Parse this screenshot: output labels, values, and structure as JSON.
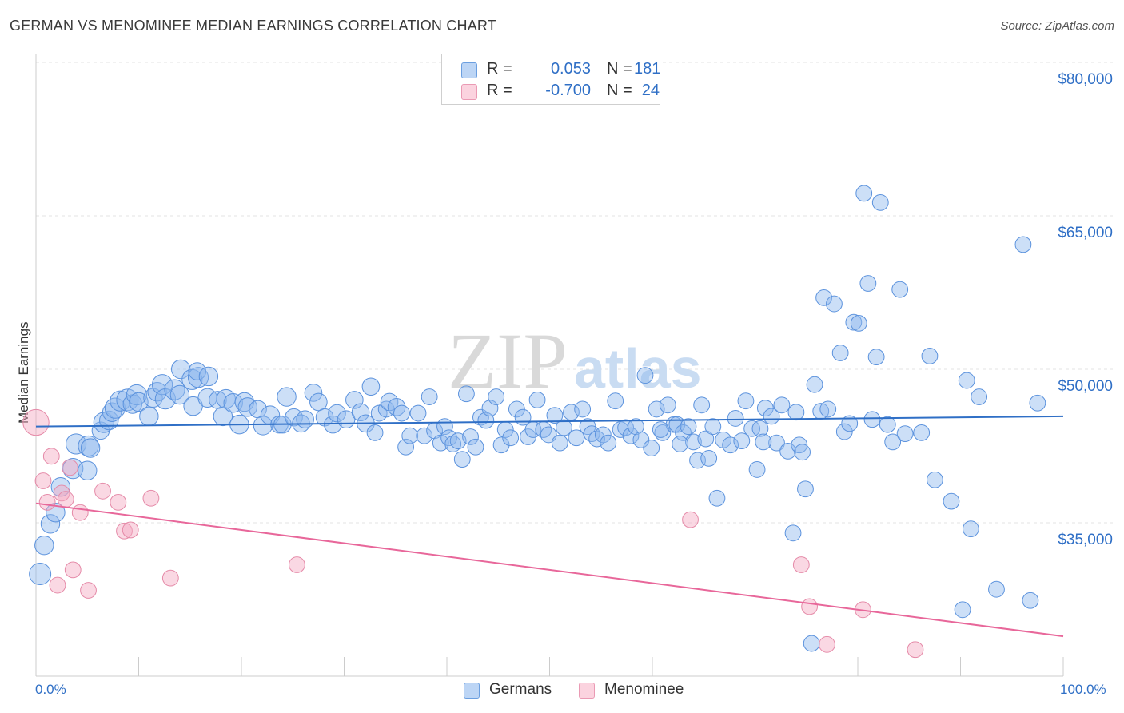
{
  "chart_data": {
    "type": "scatter",
    "title": "GERMAN VS MENOMINEE MEDIAN EARNINGS CORRELATION CHART",
    "source": "Source: ZipAtlas.com",
    "xlabel": "",
    "ylabel": "Median Earnings",
    "xlim": [
      0,
      100
    ],
    "ylim": [
      20000,
      84000
    ],
    "x_tick_labels": [
      "0.0%",
      "100.0%"
    ],
    "y_ticks": [
      {
        "value": 80000,
        "label": "$80,000"
      },
      {
        "value": 65000,
        "label": "$65,000"
      },
      {
        "value": 50000,
        "label": "$50,000"
      },
      {
        "value": 35000,
        "label": "$35,000"
      }
    ],
    "grid": true,
    "legend": {
      "placement": "top-center",
      "entries": [
        {
          "name": "Germans",
          "r_label": "R =",
          "r": "0.053",
          "n_label": "N =",
          "n": "181",
          "color": "#8fb8ee"
        },
        {
          "name": "Menominee",
          "r_label": "R =",
          "r": "-0.700",
          "n_label": "N =",
          "n": "24",
          "color": "#f4a8c0"
        }
      ]
    },
    "watermark": "ZIPatlas",
    "series": [
      {
        "name": "Germans",
        "color": "#8fb8ee",
        "stroke": "#5b92dd",
        "trend": {
          "x": [
            0,
            100
          ],
          "y": [
            44400,
            45400
          ],
          "color": "#2f6fc6"
        },
        "points": [
          [
            0.4,
            30000,
            1.5
          ],
          [
            0.8,
            32800,
            1.3
          ],
          [
            1.4,
            34900,
            1.3
          ],
          [
            1.9,
            36000,
            1.3
          ],
          [
            2.4,
            38500,
            1.3
          ],
          [
            3.6,
            40300,
            1.4
          ],
          [
            3.9,
            42700,
            1.4
          ],
          [
            5.0,
            40100,
            1.3
          ],
          [
            5.1,
            42500,
            1.4
          ],
          [
            5.3,
            42300,
            1.3
          ],
          [
            6.3,
            44000,
            1.2
          ],
          [
            6.6,
            44800,
            1.4
          ],
          [
            7.1,
            45000,
            1.3
          ],
          [
            7.4,
            45800,
            1.3
          ],
          [
            7.7,
            46200,
            1.4
          ],
          [
            8.2,
            46900,
            1.4
          ],
          [
            8.9,
            47000,
            1.5
          ],
          [
            9.4,
            46600,
            1.3
          ],
          [
            9.8,
            47500,
            1.4
          ],
          [
            10.0,
            46800,
            1.3
          ],
          [
            11.0,
            45400,
            1.3
          ],
          [
            11.4,
            47200,
            1.3
          ],
          [
            11.8,
            47800,
            1.3
          ],
          [
            12.3,
            48500,
            1.4
          ],
          [
            12.6,
            47100,
            1.4
          ],
          [
            13.5,
            48000,
            1.4
          ],
          [
            14.0,
            47500,
            1.3
          ],
          [
            14.1,
            50000,
            1.3
          ],
          [
            15.2,
            49000,
            1.4
          ],
          [
            15.8,
            49200,
            1.4
          ],
          [
            15.7,
            49800,
            1.2
          ],
          [
            16.8,
            49300,
            1.3
          ],
          [
            15.3,
            46400,
            1.3
          ],
          [
            16.7,
            47200,
            1.3
          ],
          [
            17.7,
            47000,
            1.2
          ],
          [
            18.2,
            45400,
            1.3
          ],
          [
            18.5,
            47100,
            1.3
          ],
          [
            19.2,
            46700,
            1.3
          ],
          [
            19.8,
            44600,
            1.3
          ],
          [
            20.3,
            46800,
            1.3
          ],
          [
            20.6,
            46300,
            1.3
          ],
          [
            21.6,
            46100,
            1.2
          ],
          [
            22.1,
            44500,
            1.3
          ],
          [
            22.8,
            45500,
            1.3
          ],
          [
            23.7,
            44600,
            1.2
          ],
          [
            24.0,
            44600,
            1.2
          ],
          [
            24.4,
            47300,
            1.3
          ],
          [
            25.1,
            45300,
            1.2
          ],
          [
            25.8,
            44700,
            1.2
          ],
          [
            26.2,
            45100,
            1.2
          ],
          [
            27.0,
            47700,
            1.2
          ],
          [
            27.5,
            46800,
            1.2
          ],
          [
            28.1,
            45300,
            1.2
          ],
          [
            28.9,
            44600,
            1.2
          ],
          [
            29.3,
            45700,
            1.2
          ],
          [
            30.2,
            45100,
            1.2
          ],
          [
            31.0,
            47000,
            1.2
          ],
          [
            31.6,
            45800,
            1.2
          ],
          [
            32.1,
            44700,
            1.2
          ],
          [
            32.6,
            48300,
            1.2
          ],
          [
            33.0,
            43800,
            1.1
          ],
          [
            33.4,
            45700,
            1.1
          ],
          [
            34.1,
            46100,
            1.1
          ],
          [
            34.4,
            46800,
            1.2
          ],
          [
            35.1,
            46300,
            1.2
          ],
          [
            35.6,
            45700,
            1.1
          ],
          [
            36.0,
            42400,
            1.1
          ],
          [
            36.4,
            43500,
            1.1
          ],
          [
            37.2,
            45700,
            1.1
          ],
          [
            37.8,
            43500,
            1.1
          ],
          [
            38.3,
            47300,
            1.1
          ],
          [
            38.8,
            44000,
            1.1
          ],
          [
            39.4,
            42800,
            1.1
          ],
          [
            39.8,
            44400,
            1.1
          ],
          [
            40.2,
            43300,
            1.1
          ],
          [
            40.6,
            42700,
            1.1
          ],
          [
            41.1,
            43000,
            1.1
          ],
          [
            41.5,
            41200,
            1.1
          ],
          [
            41.9,
            47600,
            1.1
          ],
          [
            42.3,
            43400,
            1.1
          ],
          [
            42.8,
            42400,
            1.1
          ],
          [
            43.3,
            45300,
            1.1
          ],
          [
            43.8,
            45000,
            1.1
          ],
          [
            44.2,
            46200,
            1.1
          ],
          [
            44.8,
            47300,
            1.1
          ],
          [
            45.3,
            42600,
            1.1
          ],
          [
            45.7,
            44100,
            1.1
          ],
          [
            46.2,
            43300,
            1.1
          ],
          [
            46.8,
            46100,
            1.1
          ],
          [
            47.4,
            45300,
            1.1
          ],
          [
            47.9,
            43400,
            1.1
          ],
          [
            48.4,
            44100,
            1.1
          ],
          [
            48.8,
            47000,
            1.1
          ],
          [
            49.4,
            44100,
            1.1
          ],
          [
            49.9,
            43600,
            1.1
          ],
          [
            50.5,
            45500,
            1.1
          ],
          [
            51.0,
            42800,
            1.1
          ],
          [
            51.4,
            44300,
            1.1
          ],
          [
            52.1,
            45800,
            1.1
          ],
          [
            52.6,
            43300,
            1.1
          ],
          [
            53.2,
            46100,
            1.1
          ],
          [
            53.7,
            44400,
            1.1
          ],
          [
            54.1,
            43700,
            1.1
          ],
          [
            54.6,
            43200,
            1.1
          ],
          [
            55.2,
            43600,
            1.1
          ],
          [
            55.7,
            42800,
            1.1
          ],
          [
            56.4,
            46900,
            1.1
          ],
          [
            56.9,
            44100,
            1.1
          ],
          [
            57.4,
            44300,
            1.1
          ],
          [
            57.9,
            43500,
            1.1
          ],
          [
            58.4,
            44400,
            1.1
          ],
          [
            58.9,
            43100,
            1.1
          ],
          [
            59.3,
            49400,
            1.1
          ],
          [
            59.9,
            42300,
            1.1
          ],
          [
            60.4,
            46100,
            1.1
          ],
          [
            61.0,
            43800,
            1.1
          ],
          [
            61.5,
            46500,
            1.1
          ],
          [
            62.1,
            44600,
            1.1
          ],
          [
            62.4,
            44600,
            1.1
          ],
          [
            63.0,
            43800,
            1.1
          ],
          [
            63.5,
            44400,
            1.1
          ],
          [
            64.0,
            42900,
            1.1
          ],
          [
            64.4,
            41100,
            1.1
          ],
          [
            64.8,
            46500,
            1.1
          ],
          [
            65.2,
            43200,
            1.1
          ],
          [
            65.5,
            41300,
            1.1
          ],
          [
            65.9,
            44400,
            1.1
          ],
          [
            66.3,
            37400,
            1.1
          ],
          [
            66.9,
            43100,
            1.1
          ],
          [
            67.6,
            42600,
            1.1
          ],
          [
            68.1,
            45200,
            1.1
          ],
          [
            68.7,
            43000,
            1.1
          ],
          [
            69.1,
            46900,
            1.1
          ],
          [
            69.7,
            44200,
            1.1
          ],
          [
            70.2,
            40200,
            1.1
          ],
          [
            70.5,
            44200,
            1.1
          ],
          [
            71.0,
            46200,
            1.1
          ],
          [
            71.6,
            45400,
            1.1
          ],
          [
            72.1,
            42800,
            1.1
          ],
          [
            72.6,
            46500,
            1.1
          ],
          [
            73.2,
            42000,
            1.1
          ],
          [
            73.7,
            34000,
            1.1
          ],
          [
            74.3,
            42600,
            1.1
          ],
          [
            74.6,
            41900,
            1.1
          ],
          [
            74.9,
            38300,
            1.1
          ],
          [
            75.5,
            23200,
            1.1
          ],
          [
            75.8,
            48500,
            1.1
          ],
          [
            76.4,
            45900,
            1.1
          ],
          [
            76.7,
            57000,
            1.1
          ],
          [
            77.1,
            46100,
            1.1
          ],
          [
            77.7,
            56400,
            1.1
          ],
          [
            78.3,
            51600,
            1.1
          ],
          [
            78.7,
            43900,
            1.1
          ],
          [
            79.2,
            44700,
            1.1
          ],
          [
            79.6,
            54600,
            1.1
          ],
          [
            80.1,
            54500,
            1.1
          ],
          [
            80.6,
            67200,
            1.1
          ],
          [
            81.0,
            58400,
            1.1
          ],
          [
            81.4,
            45100,
            1.1
          ],
          [
            81.8,
            51200,
            1.1
          ],
          [
            82.2,
            66300,
            1.1
          ],
          [
            82.9,
            44600,
            1.1
          ],
          [
            83.4,
            42900,
            1.1
          ],
          [
            84.1,
            57800,
            1.1
          ],
          [
            84.6,
            43700,
            1.1
          ],
          [
            87.0,
            51300,
            1.1
          ],
          [
            87.5,
            39200,
            1.1
          ],
          [
            89.1,
            37100,
            1.1
          ],
          [
            90.2,
            26500,
            1.1
          ],
          [
            90.6,
            48900,
            1.1
          ],
          [
            91.0,
            34400,
            1.1
          ],
          [
            91.8,
            47300,
            1.1
          ],
          [
            93.5,
            28500,
            1.1
          ],
          [
            96.1,
            62200,
            1.1
          ],
          [
            96.8,
            27400,
            1.1
          ],
          [
            97.5,
            46700,
            1.1
          ],
          [
            60.8,
            44100,
            1.1
          ],
          [
            62.7,
            42700,
            1.1
          ],
          [
            70.8,
            42900,
            1.1
          ],
          [
            74.0,
            45800,
            1.1
          ],
          [
            86.2,
            43800,
            1.1
          ]
        ]
      },
      {
        "name": "Menominee",
        "color": "#f4a8c0",
        "stroke": "#e58aa8",
        "trend": {
          "x": [
            0,
            100
          ],
          "y": [
            36900,
            23900
          ],
          "color": "#e8679a"
        },
        "points": [
          [
            0.0,
            44800,
            1.8
          ],
          [
            0.7,
            39100,
            1.1
          ],
          [
            1.1,
            37000,
            1.1
          ],
          [
            1.5,
            41500,
            1.1
          ],
          [
            2.1,
            28900,
            1.1
          ],
          [
            2.5,
            37900,
            1.1
          ],
          [
            2.9,
            37300,
            1.1
          ],
          [
            3.3,
            40400,
            1.1
          ],
          [
            3.6,
            30400,
            1.1
          ],
          [
            4.3,
            36000,
            1.1
          ],
          [
            5.1,
            28400,
            1.1
          ],
          [
            6.5,
            38100,
            1.1
          ],
          [
            8.0,
            37000,
            1.1
          ],
          [
            8.6,
            34200,
            1.1
          ],
          [
            9.2,
            34300,
            1.1
          ],
          [
            11.2,
            37400,
            1.1
          ],
          [
            13.1,
            29600,
            1.1
          ],
          [
            25.4,
            30900,
            1.1
          ],
          [
            63.7,
            35300,
            1.1
          ],
          [
            74.5,
            30900,
            1.1
          ],
          [
            75.3,
            26800,
            1.1
          ],
          [
            77.0,
            23100,
            1.1
          ],
          [
            80.5,
            26500,
            1.1
          ],
          [
            85.6,
            22600,
            1.1
          ]
        ]
      }
    ]
  }
}
